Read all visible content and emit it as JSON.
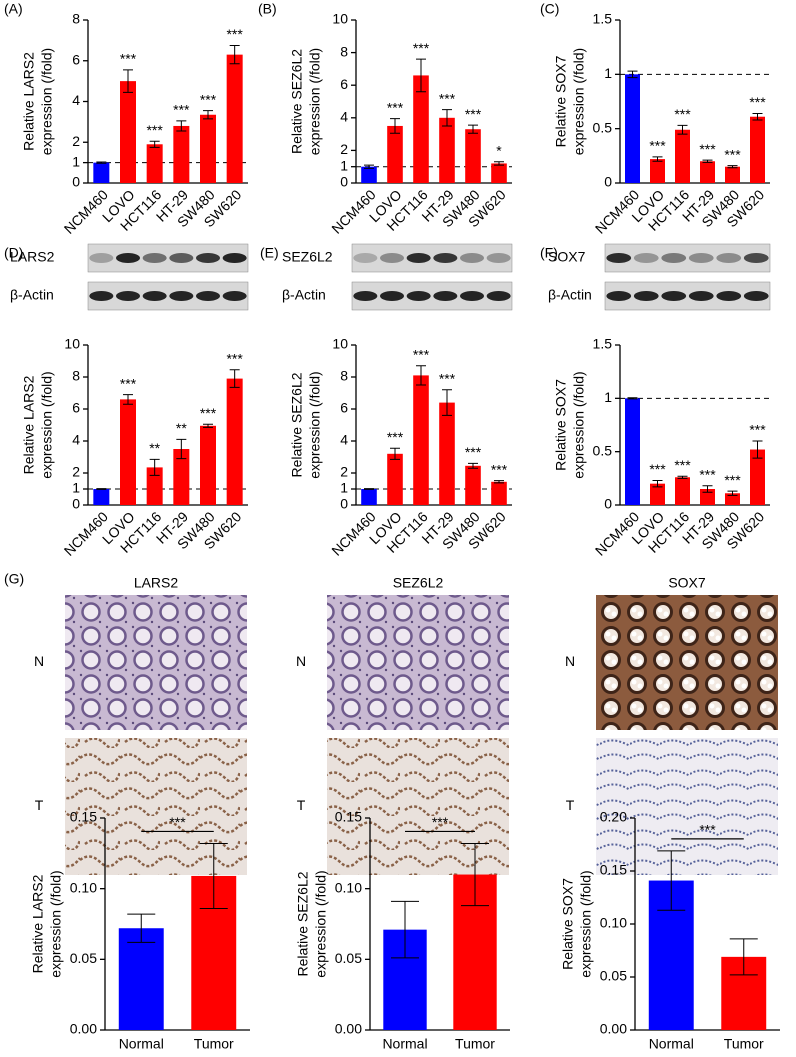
{
  "chart_data": [
    {
      "type": "bar",
      "panel": "(A)",
      "ylabel": [
        "Relative LARS2",
        "expression (/fold)"
      ],
      "categories": [
        "NCM460",
        "LOVO",
        "HCT116",
        "HT-29",
        "SW480",
        "SW620"
      ],
      "values": [
        1,
        5.0,
        1.9,
        2.8,
        3.35,
        6.3
      ],
      "errors": [
        0.03,
        0.55,
        0.15,
        0.25,
        0.2,
        0.45
      ],
      "colors": [
        "#0000ff",
        "#ff0000",
        "#ff0000",
        "#ff0000",
        "#ff0000",
        "#ff0000"
      ],
      "annotations": [
        null,
        "***",
        "***",
        "***",
        "***",
        "***"
      ],
      "ylim": [
        0,
        8
      ],
      "yticks": [
        0,
        1,
        2,
        4,
        6,
        8
      ],
      "reference_line": 1
    },
    {
      "type": "bar",
      "panel": "(B)",
      "ylabel": [
        "Relative SEZ6L2",
        "expression (/fold)"
      ],
      "categories": [
        "NCM460",
        "LOVO",
        "HCT116",
        "HT-29",
        "SW480",
        "SW620"
      ],
      "values": [
        1,
        3.5,
        6.6,
        4.0,
        3.3,
        1.2
      ],
      "errors": [
        0.1,
        0.45,
        1.0,
        0.5,
        0.25,
        0.1
      ],
      "colors": [
        "#0000ff",
        "#ff0000",
        "#ff0000",
        "#ff0000",
        "#ff0000",
        "#ff0000"
      ],
      "annotations": [
        null,
        "***",
        "***",
        "***",
        "***",
        "*"
      ],
      "ylim": [
        0,
        10
      ],
      "yticks": [
        0,
        1,
        2,
        4,
        6,
        8,
        10
      ],
      "reference_line": 1
    },
    {
      "type": "bar",
      "panel": "(C)",
      "ylabel": [
        "Relative SOX7",
        "expression (/fold)"
      ],
      "categories": [
        "NCM460",
        "LOVO",
        "HCT116",
        "HT-29",
        "SW480",
        "SW620"
      ],
      "values": [
        1,
        0.22,
        0.49,
        0.2,
        0.15,
        0.61
      ],
      "errors": [
        0.03,
        0.02,
        0.04,
        0.01,
        0.01,
        0.03
      ],
      "colors": [
        "#0000ff",
        "#ff0000",
        "#ff0000",
        "#ff0000",
        "#ff0000",
        "#ff0000"
      ],
      "annotations": [
        null,
        "***",
        "***",
        "***",
        "***",
        "***"
      ],
      "ylim": [
        0,
        1.5
      ],
      "yticks": [
        0,
        0.5,
        1,
        1.5
      ],
      "reference_line": 1
    },
    {
      "type": "bar",
      "panel": "(D)",
      "ylabel": [
        "Relative LARS2",
        "expression (/fold)"
      ],
      "categories": [
        "NCM460",
        "LOVO",
        "HCT116",
        "HT-29",
        "SW480",
        "SW620"
      ],
      "values": [
        1,
        6.6,
        2.35,
        3.5,
        4.95,
        7.9
      ],
      "errors": [
        0.02,
        0.3,
        0.5,
        0.6,
        0.1,
        0.55
      ],
      "colors": [
        "#0000ff",
        "#ff0000",
        "#ff0000",
        "#ff0000",
        "#ff0000",
        "#ff0000"
      ],
      "annotations": [
        null,
        "***",
        "**",
        "**",
        "***",
        "***"
      ],
      "ylim": [
        0,
        10
      ],
      "yticks": [
        0,
        1,
        2,
        4,
        6,
        8,
        10
      ],
      "reference_line": 1
    },
    {
      "type": "bar",
      "panel": "(E)",
      "ylabel": [
        "Relative SEZ6L2",
        "expression (/fold)"
      ],
      "categories": [
        "NCM460",
        "LOVO",
        "HCT116",
        "HT-29",
        "SW480",
        "SW620"
      ],
      "values": [
        1,
        3.2,
        8.1,
        6.4,
        2.45,
        1.45
      ],
      "errors": [
        0.02,
        0.35,
        0.6,
        0.8,
        0.15,
        0.07
      ],
      "colors": [
        "#0000ff",
        "#ff0000",
        "#ff0000",
        "#ff0000",
        "#ff0000",
        "#ff0000"
      ],
      "annotations": [
        null,
        "***",
        "***",
        "***",
        "***",
        "***"
      ],
      "ylim": [
        0,
        10
      ],
      "yticks": [
        0,
        1,
        2,
        4,
        6,
        8,
        10
      ],
      "reference_line": 1
    },
    {
      "type": "bar",
      "panel": "(F)",
      "ylabel": [
        "Relative SOX7",
        "expression (/fold)"
      ],
      "categories": [
        "NCM460",
        "LOVO",
        "HCT116",
        "HT-29",
        "SW480",
        "SW620"
      ],
      "values": [
        1,
        0.2,
        0.26,
        0.15,
        0.11,
        0.52
      ],
      "errors": [
        0.005,
        0.03,
        0.01,
        0.03,
        0.02,
        0.08
      ],
      "colors": [
        "#0000ff",
        "#ff0000",
        "#ff0000",
        "#ff0000",
        "#ff0000",
        "#ff0000"
      ],
      "annotations": [
        null,
        "***",
        "***",
        "***",
        "***",
        "***"
      ],
      "ylim": [
        0,
        1.5
      ],
      "yticks": [
        0,
        0.5,
        1,
        1.5
      ],
      "reference_line": 1
    },
    {
      "type": "bar",
      "ylabel": [
        "Relative LARS2",
        "expression (/fold)"
      ],
      "categories": [
        "Normal",
        "Tumor"
      ],
      "values": [
        0.072,
        0.109
      ],
      "errors": [
        0.01,
        0.023
      ],
      "colors": [
        "#0000ff",
        "#ff0000"
      ],
      "significance": "***",
      "ylim": [
        0,
        0.15
      ],
      "yticks": [
        {
          "value": 0,
          "label": "0.00"
        },
        0.05,
        {
          "value": 0.1,
          "label": "0.10"
        },
        0.15
      ]
    },
    {
      "type": "bar",
      "ylabel": [
        "Relative SEZ6L2",
        "expression (/fold)"
      ],
      "categories": [
        "Normal",
        "Tumor"
      ],
      "values": [
        0.071,
        0.11
      ],
      "errors": [
        0.02,
        0.022
      ],
      "colors": [
        "#0000ff",
        "#ff0000"
      ],
      "significance": "***",
      "ylim": [
        0,
        0.15
      ],
      "yticks": [
        {
          "value": 0,
          "label": "0.00"
        },
        0.05,
        {
          "value": 0.1,
          "label": "0.10"
        },
        0.15
      ]
    },
    {
      "type": "bar",
      "ylabel": [
        "Relative SOX7",
        "expression (/fold)"
      ],
      "categories": [
        "Normal",
        "Tumor"
      ],
      "values": [
        0.141,
        0.069
      ],
      "errors": [
        0.028,
        0.017
      ],
      "colors": [
        "#0000ff",
        "#ff0000"
      ],
      "significance": "***",
      "ylim": [
        0,
        0.2
      ],
      "yticks": [
        {
          "value": 0,
          "label": "0.00"
        },
        0.05,
        {
          "value": 0.1,
          "label": "0.10"
        },
        0.15,
        {
          "value": 0.2,
          "label": "0.20"
        }
      ]
    }
  ],
  "blots": [
    {
      "target": "LARS2",
      "control": "β-Actin"
    },
    {
      "target": "SEZ6L2",
      "control": "β-Actin"
    },
    {
      "target": "SOX7",
      "control": "β-Actin"
    }
  ],
  "ihc": {
    "panel": "(G)",
    "columns": [
      "LARS2",
      "SEZ6L2",
      "SOX7"
    ],
    "rows": [
      "N",
      "T"
    ]
  }
}
